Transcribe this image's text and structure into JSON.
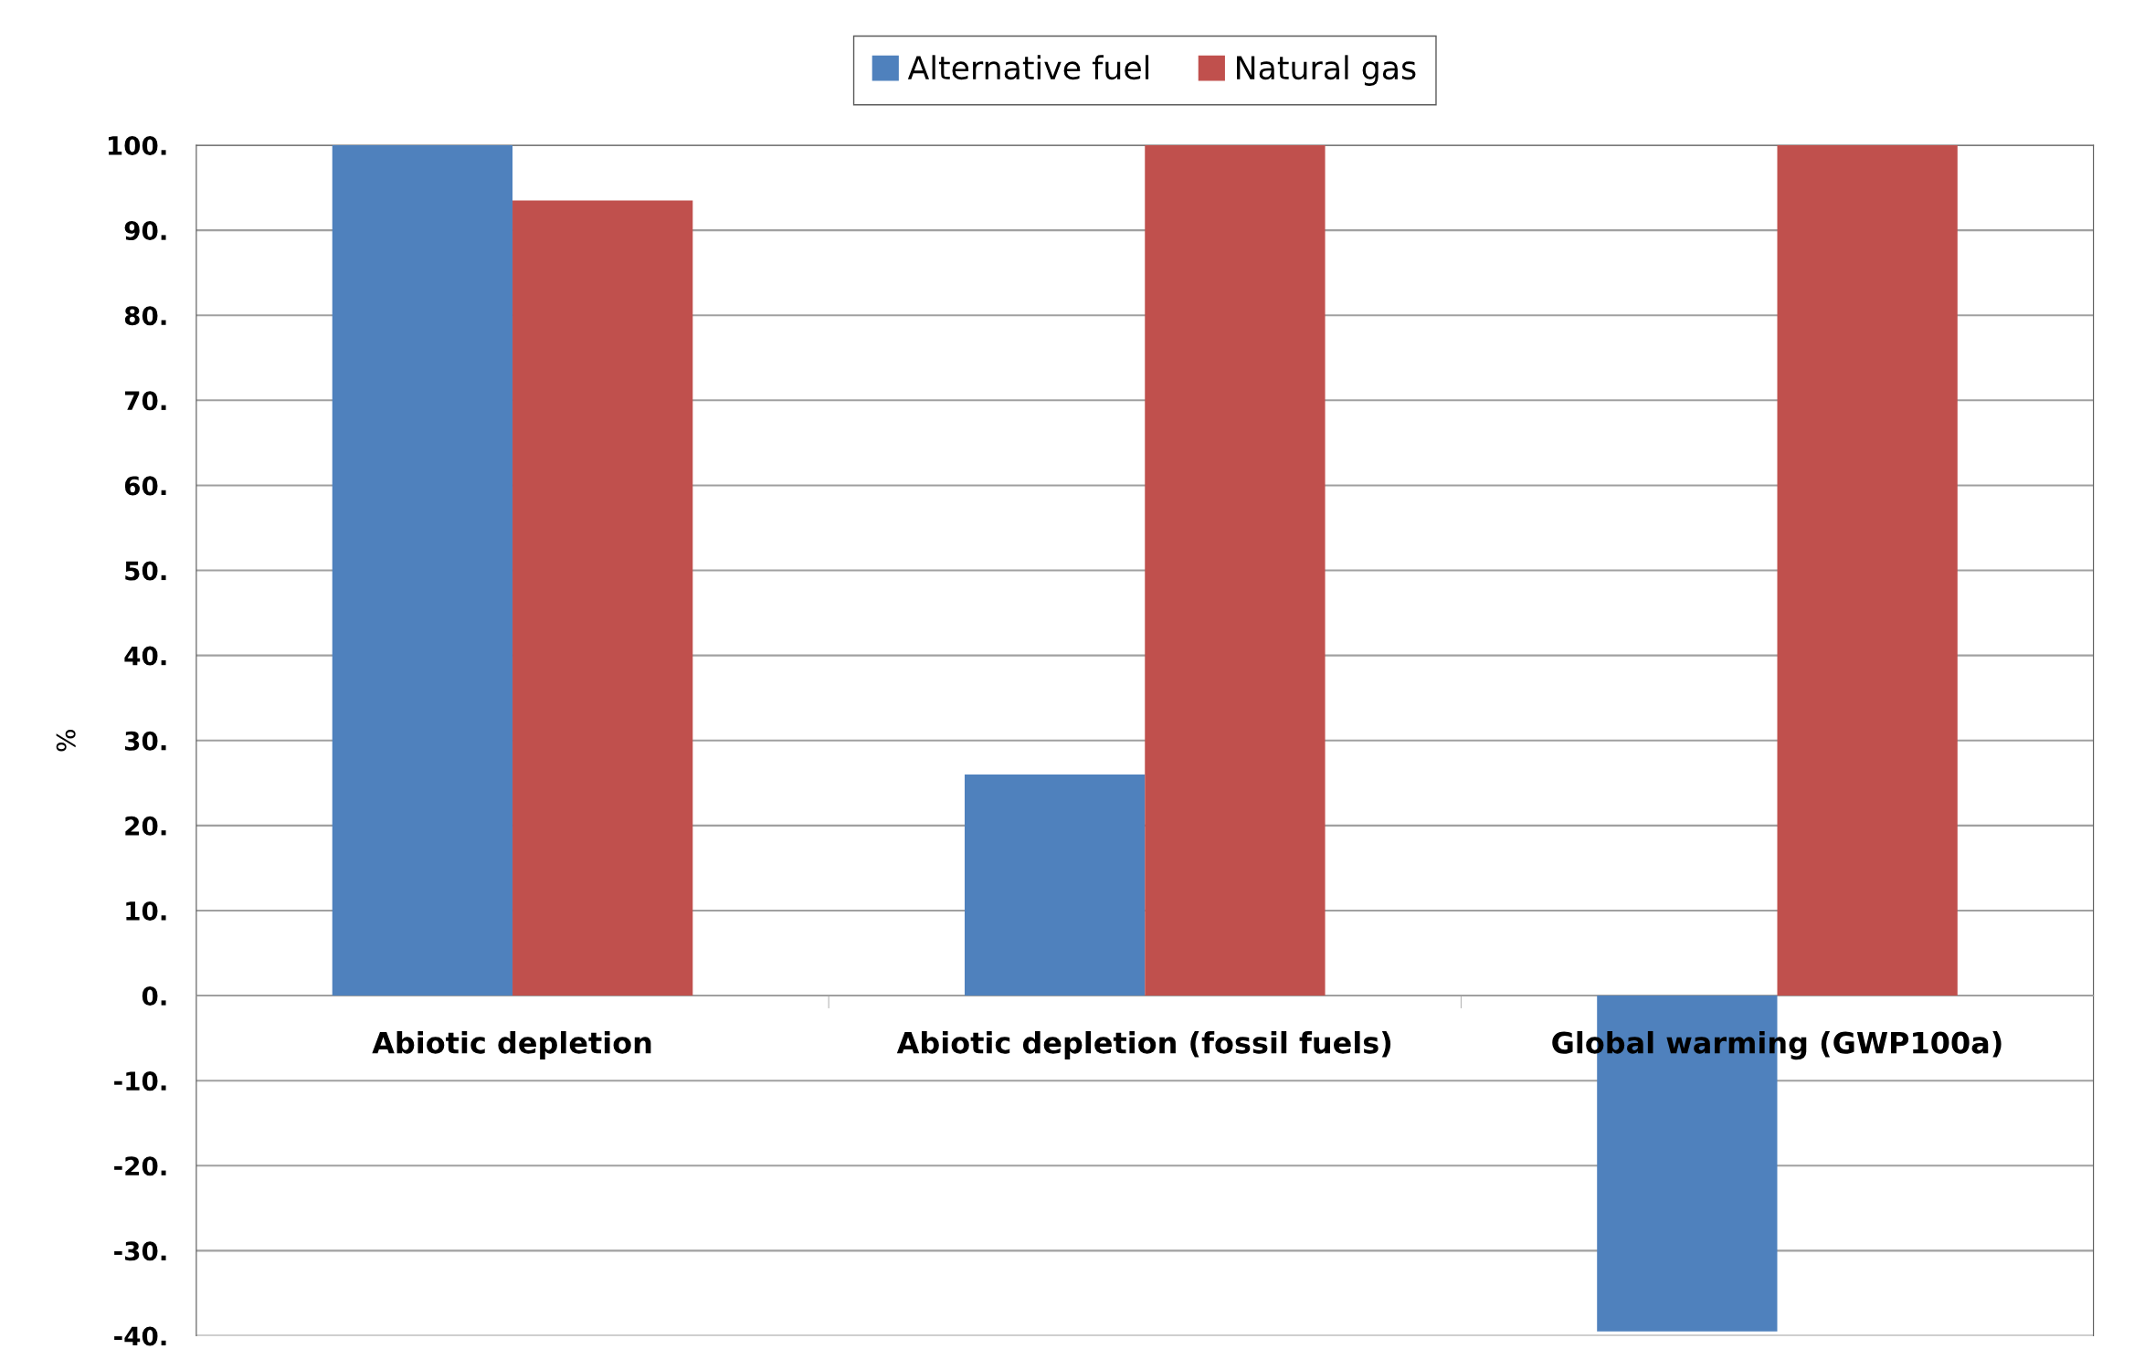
{
  "chart_data": {
    "type": "bar",
    "ylabel": "%",
    "categories": [
      "Abiotic depletion",
      "Abiotic depletion (fossil fuels)",
      "Global warming (GWP100a)"
    ],
    "series": [
      {
        "name": "Alternative fuel",
        "color": "#4f81bd",
        "values": [
          100,
          26,
          -39.5
        ]
      },
      {
        "name": "Natural gas",
        "color": "#c0504d",
        "values": [
          93.5,
          100,
          100
        ]
      }
    ],
    "ylim": [
      -40,
      100
    ],
    "yticks": [
      {
        "value": -40,
        "label": "-40."
      },
      {
        "value": -30,
        "label": "-30."
      },
      {
        "value": -20,
        "label": "-20."
      },
      {
        "value": -10,
        "label": "-10."
      },
      {
        "value": 0,
        "label": "0."
      },
      {
        "value": 10,
        "label": "10."
      },
      {
        "value": 20,
        "label": "20."
      },
      {
        "value": 30,
        "label": "30."
      },
      {
        "value": 40,
        "label": "40."
      },
      {
        "value": 50,
        "label": "50."
      },
      {
        "value": 60,
        "label": "60."
      },
      {
        "value": 70,
        "label": "70."
      },
      {
        "value": 80,
        "label": "80."
      },
      {
        "value": 90,
        "label": "90."
      },
      {
        "value": 100,
        "label": "100."
      }
    ],
    "grid": "y",
    "legend": "top"
  }
}
